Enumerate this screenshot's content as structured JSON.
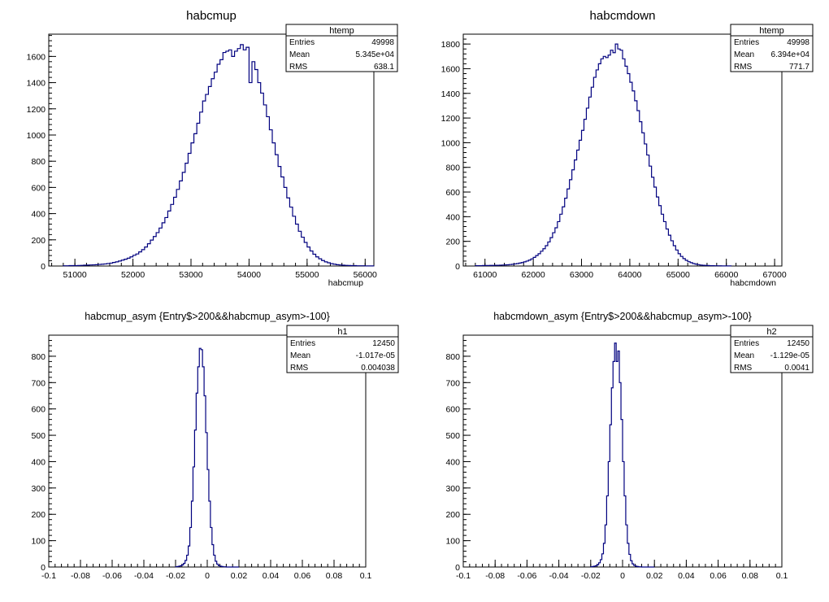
{
  "chart_data": [
    {
      "type": "histogram",
      "title": "habcmup",
      "xlabel": "habcmup",
      "ylabel": "",
      "xlim": [
        50550,
        56150
      ],
      "ylim": [
        0,
        1770
      ],
      "xticks": [
        51000,
        52000,
        53000,
        54000,
        55000,
        56000
      ],
      "yticks": [
        0,
        200,
        400,
        600,
        800,
        1000,
        1200,
        1400,
        1600
      ],
      "xtick_labels": [
        "51000",
        "52000",
        "53000",
        "54000",
        "55000",
        "56000"
      ],
      "ytick_labels": [
        "0",
        "200",
        "400",
        "600",
        "800",
        "1000",
        "1200",
        "1400",
        "1600"
      ],
      "stats": {
        "name": "htemp",
        "rows": [
          [
            "Entries",
            "49998"
          ],
          [
            "Mean",
            "5.345e+04"
          ],
          [
            "RMS",
            "638.1"
          ]
        ]
      },
      "series": [
        {
          "bin_start": 50800,
          "bin_width": 50,
          "values": [
            2,
            2,
            3,
            3,
            3,
            4,
            5,
            6,
            7,
            8,
            9,
            10,
            12,
            14,
            16,
            19,
            22,
            27,
            32,
            38,
            45,
            52,
            60,
            70,
            82,
            92,
            108,
            125,
            145,
            170,
            198,
            225,
            255,
            290,
            330,
            370,
            420,
            470,
            525,
            585,
            650,
            715,
            785,
            860,
            940,
            1010,
            1090,
            1175,
            1260,
            1310,
            1370,
            1430,
            1480,
            1540,
            1575,
            1630,
            1640,
            1650,
            1600,
            1640,
            1660,
            1690,
            1650,
            1670,
            1400,
            1560,
            1500,
            1400,
            1320,
            1230,
            1140,
            1040,
            940,
            850,
            760,
            680,
            600,
            520,
            450,
            380,
            320,
            265,
            220,
            180,
            145,
            115,
            90,
            70,
            55,
            42,
            32,
            25,
            18,
            14,
            10,
            8,
            6,
            5,
            4,
            3,
            3,
            2,
            2,
            2,
            1,
            1,
            1
          ]
        }
      ]
    },
    {
      "type": "histogram",
      "title": "habcmdown",
      "xlabel": "habcmdown",
      "ylabel": "",
      "xlim": [
        60550,
        67150
      ],
      "ylim": [
        0,
        1880
      ],
      "xticks": [
        61000,
        62000,
        63000,
        64000,
        65000,
        66000,
        67000
      ],
      "yticks": [
        0,
        200,
        400,
        600,
        800,
        1000,
        1200,
        1400,
        1600,
        1800
      ],
      "xtick_labels": [
        "61000",
        "62000",
        "63000",
        "64000",
        "65000",
        "66000",
        "67000"
      ],
      "ytick_labels": [
        "0",
        "200",
        "400",
        "600",
        "800",
        "1000",
        "1200",
        "1400",
        "1600",
        "1800"
      ],
      "stats": {
        "name": "htemp",
        "rows": [
          [
            "Entries",
            "49998"
          ],
          [
            "Mean",
            "6.394e+04"
          ],
          [
            "RMS",
            "771.7"
          ]
        ]
      },
      "series": [
        {
          "bin_start": 60800,
          "bin_width": 50,
          "values": [
            3,
            3,
            3,
            4,
            4,
            4,
            5,
            5,
            6,
            6,
            7,
            8,
            9,
            10,
            12,
            14,
            17,
            20,
            24,
            28,
            34,
            40,
            48,
            58,
            70,
            85,
            100,
            120,
            140,
            165,
            195,
            230,
            270,
            310,
            360,
            420,
            480,
            550,
            625,
            700,
            780,
            860,
            940,
            1020,
            1100,
            1190,
            1280,
            1370,
            1450,
            1530,
            1590,
            1640,
            1680,
            1700,
            1690,
            1710,
            1750,
            1730,
            1800,
            1760,
            1750,
            1680,
            1620,
            1560,
            1490,
            1420,
            1340,
            1260,
            1170,
            1080,
            990,
            900,
            810,
            720,
            640,
            560,
            490,
            420,
            360,
            300,
            250,
            205,
            165,
            130,
            100,
            78,
            60,
            46,
            35,
            27,
            20,
            15,
            11,
            8,
            6,
            5,
            4,
            3,
            3,
            2,
            2,
            2,
            1,
            1,
            1,
            1
          ]
        }
      ]
    },
    {
      "type": "histogram",
      "title": "habcmup_asym {Entry$>200&&habcmup_asym>-100}",
      "xlabel": "",
      "ylabel": "",
      "xlim": [
        -0.1,
        0.1
      ],
      "ylim": [
        0,
        880
      ],
      "xticks": [
        -0.1,
        -0.08,
        -0.06,
        -0.04,
        -0.02,
        0,
        0.02,
        0.04,
        0.06,
        0.08,
        0.1
      ],
      "yticks": [
        0,
        100,
        200,
        300,
        400,
        500,
        600,
        700,
        800
      ],
      "xtick_labels": [
        "-0.1",
        "-0.08",
        "-0.06",
        "-0.04",
        "-0.02",
        "0",
        "0.02",
        "0.04",
        "0.06",
        "0.08",
        "0.1"
      ],
      "ytick_labels": [
        "0",
        "100",
        "200",
        "300",
        "400",
        "500",
        "600",
        "700",
        "800"
      ],
      "stats": {
        "name": "h1",
        "rows": [
          [
            "Entries",
            "12450"
          ],
          [
            "Mean",
            "-1.017e-05"
          ],
          [
            "RMS",
            "0.004038"
          ]
        ]
      },
      "series": [
        {
          "bin_start": -0.02,
          "bin_width": 0.001,
          "values": [
            1,
            2,
            3,
            5,
            8,
            14,
            25,
            45,
            80,
            150,
            250,
            380,
            520,
            660,
            760,
            830,
            825,
            760,
            650,
            510,
            370,
            250,
            150,
            85,
            45,
            22,
            11,
            5,
            3,
            2,
            1,
            1,
            0,
            0,
            0,
            0,
            0,
            0,
            0,
            0
          ]
        }
      ]
    },
    {
      "type": "histogram",
      "title": "habcmdown_asym {Entry$>200&&habcmup_asym>-100}",
      "xlabel": "",
      "ylabel": "",
      "xlim": [
        -0.1,
        0.1
      ],
      "ylim": [
        0,
        880
      ],
      "xticks": [
        -0.1,
        -0.08,
        -0.06,
        -0.04,
        -0.02,
        0,
        0.02,
        0.04,
        0.06,
        0.08,
        0.1
      ],
      "yticks": [
        0,
        100,
        200,
        300,
        400,
        500,
        600,
        700,
        800
      ],
      "xtick_labels": [
        "-0.1",
        "-0.08",
        "-0.06",
        "-0.04",
        "-0.02",
        "0",
        "0.02",
        "0.04",
        "0.06",
        "0.08",
        "0.1"
      ],
      "ytick_labels": [
        "0",
        "100",
        "200",
        "300",
        "400",
        "500",
        "600",
        "700",
        "800"
      ],
      "stats": {
        "name": "h2",
        "rows": [
          [
            "Entries",
            "12450"
          ],
          [
            "Mean",
            "-1.129e-05"
          ],
          [
            "RMS",
            "0.0041"
          ]
        ]
      },
      "series": [
        {
          "bin_start": -0.02,
          "bin_width": 0.001,
          "values": [
            1,
            2,
            3,
            5,
            9,
            16,
            28,
            50,
            90,
            160,
            270,
            400,
            540,
            680,
            780,
            850,
            780,
            820,
            700,
            560,
            400,
            270,
            160,
            90,
            48,
            24,
            12,
            6,
            3,
            2,
            1,
            1,
            0,
            0,
            0,
            0,
            0,
            0,
            0,
            0
          ]
        }
      ]
    }
  ],
  "colors": {
    "line": "#00007f",
    "axis": "#000000",
    "background": "#ffffff"
  }
}
